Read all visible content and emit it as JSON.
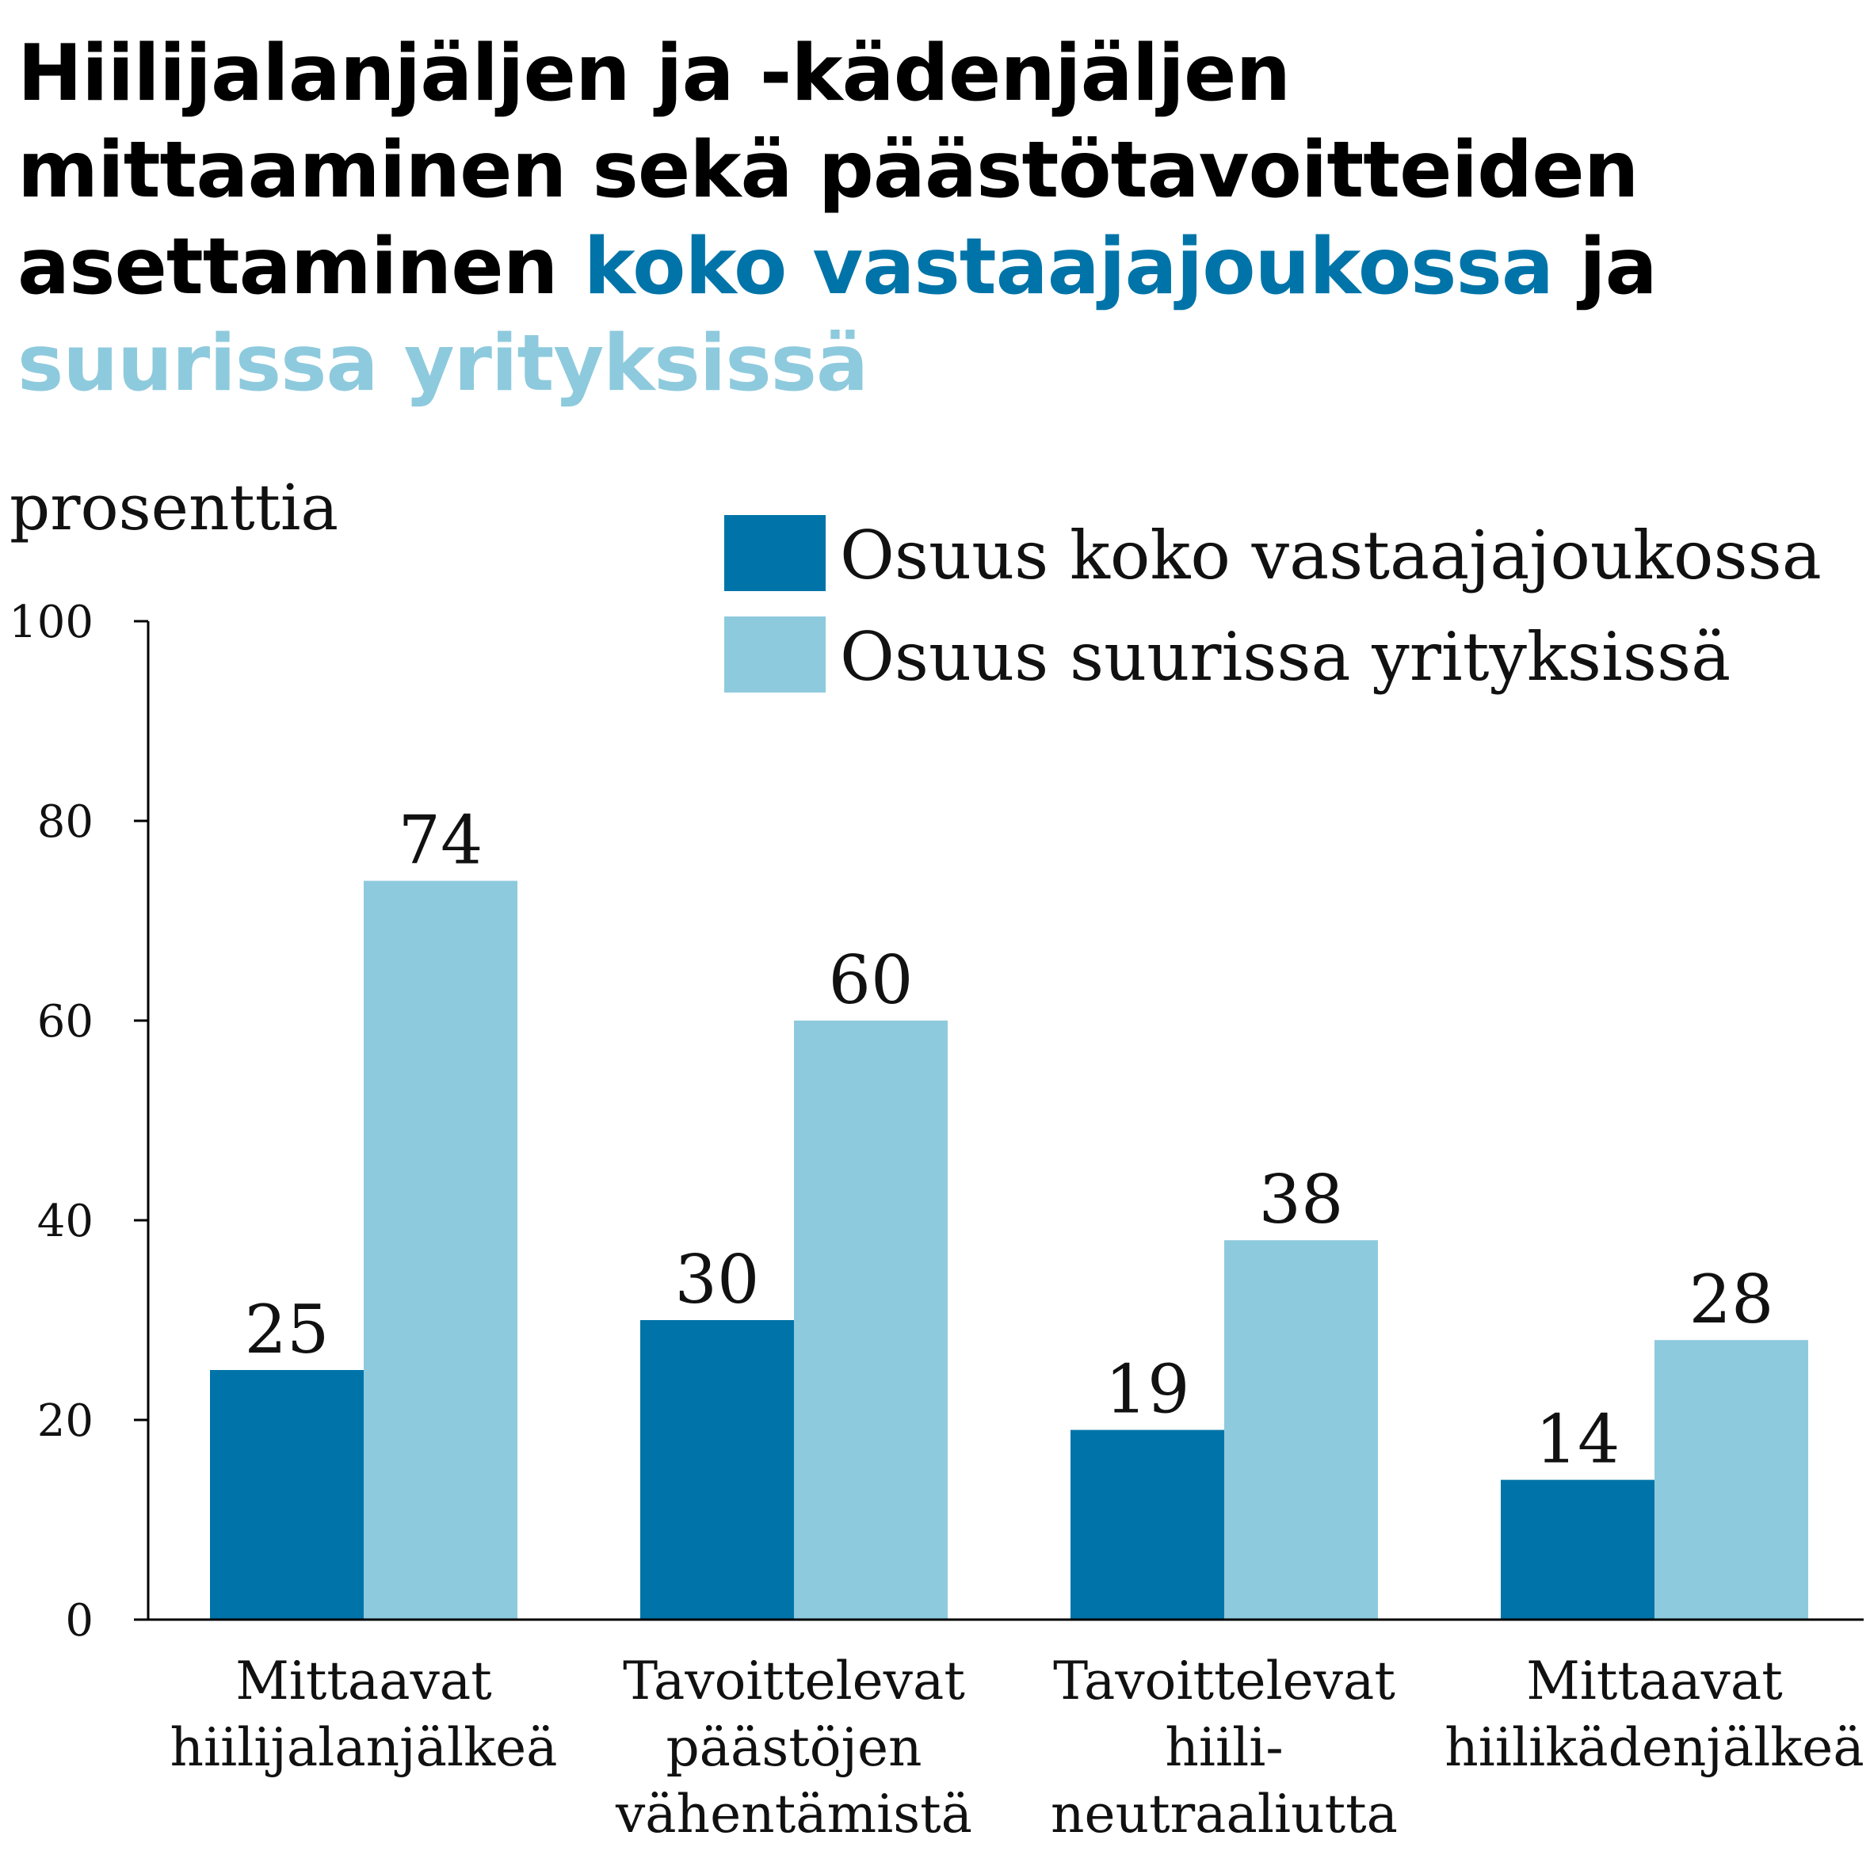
{
  "title": {
    "part1": "Hiilijalanjäljen ja -kädenjäljen mittaaminen sekä päästötavoitteiden asettaminen ",
    "highlight1": "koko vastaajajoukossa",
    "part2": " ja ",
    "highlight2": "suurissa yrityksissä"
  },
  "colors": {
    "dark": "#0074a8",
    "light": "#8ecadd"
  },
  "chart_data": {
    "type": "bar",
    "ylabel": "prosenttia",
    "ylim": [
      0,
      100
    ],
    "yticks": [
      "0",
      "20",
      "40",
      "60",
      "80",
      "100"
    ],
    "categories": [
      [
        "Mittaavat",
        "hiilijalanjälkeä"
      ],
      [
        "Tavoittelevat",
        "päästöjen",
        "vähentämistä"
      ],
      [
        "Tavoittelevat",
        "hiili-",
        "neutraaliutta"
      ],
      [
        "Mittaavat",
        "hiilikädenjälkeä"
      ]
    ],
    "series": [
      {
        "name": "Osuus koko vastaajajoukossa",
        "color": "#0074a8",
        "values": [
          25,
          30,
          19,
          14
        ]
      },
      {
        "name": "Osuus suurissa yrityksissä",
        "color": "#8ecadd",
        "values": [
          74,
          60,
          38,
          28
        ]
      }
    ],
    "legend": "top-right",
    "grid": false
  }
}
